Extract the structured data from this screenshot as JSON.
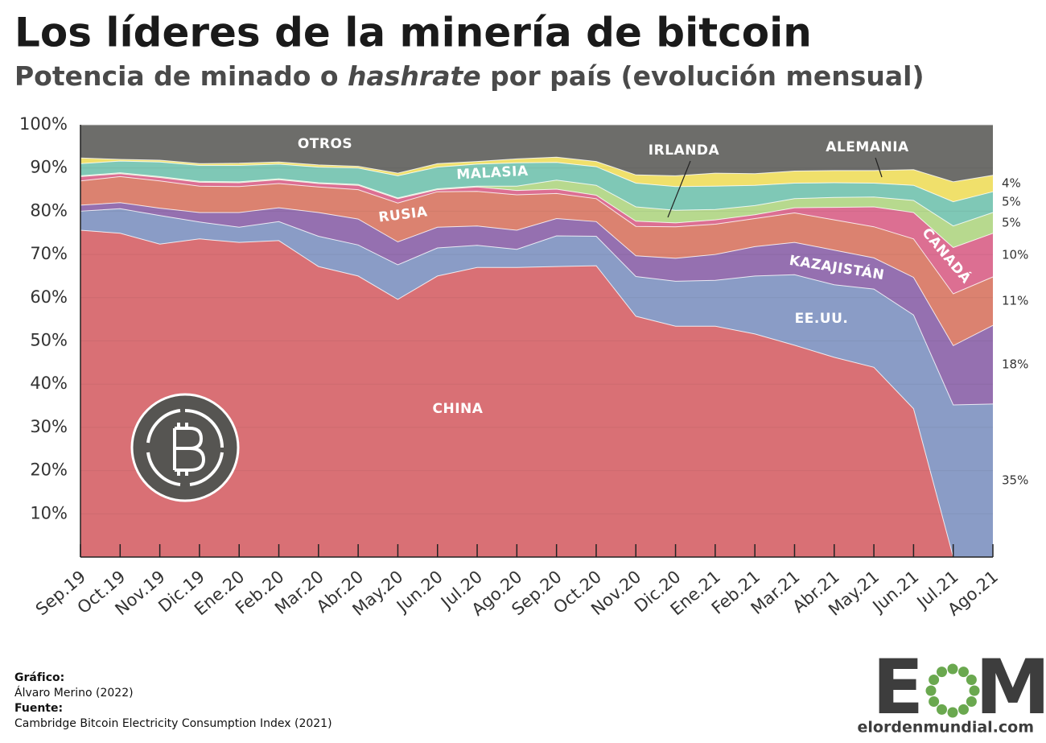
{
  "chart_data": {
    "type": "stacked_area",
    "title": "Los líderes de la minería de bitcoin",
    "subtitle": [
      "Potencia de minado o ",
      "hashrate",
      " por país (evolución mensual)"
    ],
    "categories": [
      "Sep.19",
      "Oct.19",
      "Nov.19",
      "Dic.19",
      "Ene.20",
      "Feb.20",
      "Mar.20",
      "Abr.20",
      "May.20",
      "Jun.20",
      "Jul.20",
      "Ago.20",
      "Sep.20",
      "Oct.20",
      "Nov.20",
      "Dic.20",
      "Ene.21",
      "Feb.21",
      "Mar.21",
      "Abr.21",
      "May.21",
      "Jun.21",
      "Jul.21",
      "Ago.21"
    ],
    "ylim": [
      0,
      100
    ],
    "yticks": [
      {
        "value": 10,
        "label": "10%"
      },
      {
        "value": 20,
        "label": "20%"
      },
      {
        "value": 30,
        "label": "30%"
      },
      {
        "value": 40,
        "label": "40%"
      },
      {
        "value": 50,
        "label": "50%"
      },
      {
        "value": 60,
        "label": "60%"
      },
      {
        "value": 70,
        "label": "70%"
      },
      {
        "value": 80,
        "label": "80%"
      },
      {
        "value": 90,
        "label": "90%"
      },
      {
        "value": 100,
        "label": "100%"
      }
    ],
    "grid": true,
    "series": [
      {
        "name": "CHINA",
        "color": "#d97075",
        "values": [
          75.6,
          74.9,
          72.4,
          73.6,
          72.8,
          73.2,
          67.2,
          65.0,
          59.6,
          65.0,
          67.0,
          67.0,
          67.2,
          67.4,
          55.7,
          53.4,
          53.4,
          51.6,
          49.0,
          46.2,
          43.9,
          34.3,
          0,
          0
        ]
      },
      {
        "name": "EE.UU.",
        "color": "#8a9cc6",
        "values": [
          4.4,
          5.7,
          6.6,
          3.9,
          3.5,
          4.4,
          7.0,
          7.2,
          8.0,
          6.5,
          5.1,
          4.2,
          7.1,
          6.8,
          9.2,
          10.4,
          10.6,
          13.4,
          16.3,
          16.8,
          18.1,
          21.7,
          35.2,
          35.4
        ],
        "end_label": "35%"
      },
      {
        "name": "KAZAJISTÁN",
        "color": "#9570b0",
        "values": [
          1.4,
          1.4,
          1.7,
          2.2,
          3.4,
          3.2,
          5.5,
          6.0,
          5.3,
          4.8,
          4.5,
          4.4,
          4.0,
          3.4,
          4.8,
          5.3,
          6.0,
          6.8,
          7.5,
          8.0,
          7.2,
          8.7,
          13.7,
          18.2
        ],
        "end_label": "18%"
      },
      {
        "name": "RUSIA",
        "color": "#db8270",
        "values": [
          5.6,
          6.0,
          6.3,
          6.1,
          6.0,
          5.6,
          5.9,
          6.8,
          9.0,
          8.2,
          8.0,
          8.2,
          5.8,
          5.3,
          6.8,
          7.3,
          7.0,
          6.5,
          6.8,
          7.0,
          7.2,
          8.9,
          12.0,
          11.2
        ],
        "end_label": "11%"
      },
      {
        "name": "CANADÁ",
        "color": "#dc6f92",
        "values": [
          1.0,
          0.7,
          0.8,
          0.9,
          0.9,
          0.9,
          0.8,
          1.0,
          1.0,
          0.5,
          1.0,
          1.0,
          1.0,
          0.8,
          1.2,
          0.9,
          1.0,
          0.9,
          1.2,
          2.9,
          4.6,
          6.1,
          10.7,
          10.1
        ],
        "end_label": "10%"
      },
      {
        "name": "IRLANDA",
        "color": "#b7d98e",
        "values": [
          0.2,
          0.2,
          0.2,
          0.2,
          0.2,
          0.2,
          0.2,
          0.2,
          0.2,
          0.2,
          0.2,
          1.0,
          2.1,
          2.3,
          3.3,
          2.9,
          2.4,
          2.1,
          2.1,
          2.3,
          2.3,
          2.8,
          5.0,
          4.8
        ],
        "end_label": "5%"
      },
      {
        "name": "MALASIA",
        "color": "#7fc8b6",
        "values": [
          2.8,
          2.7,
          3.4,
          3.7,
          3.8,
          3.4,
          3.6,
          3.8,
          5.1,
          5.0,
          5.1,
          5.4,
          4.1,
          4.3,
          5.5,
          5.5,
          5.4,
          4.7,
          3.6,
          3.4,
          3.2,
          3.5,
          5.6,
          4.8
        ],
        "end_label": "5%"
      },
      {
        "name": "ALEMANIA",
        "color": "#f0e06b",
        "values": [
          1.3,
          0.4,
          0.4,
          0.4,
          0.5,
          0.5,
          0.5,
          0.4,
          0.6,
          0.8,
          0.6,
          0.9,
          1.2,
          1.2,
          1.9,
          2.5,
          3.0,
          2.7,
          2.8,
          2.8,
          2.9,
          3.6,
          4.6,
          3.8
        ],
        "end_label": "4%"
      },
      {
        "name": "OTROS",
        "color": "#6d6d6a",
        "values": [
          7.7,
          8.0,
          8.2,
          9.0,
          8.9,
          8.6,
          9.3,
          9.6,
          11.2,
          9.0,
          8.5,
          7.9,
          7.5,
          8.5,
          11.6,
          11.8,
          11.2,
          11.3,
          10.7,
          10.6,
          10.6,
          10.4,
          13.2,
          11.7
        ]
      }
    ]
  },
  "footer": {
    "credit_title": "Gráfico:",
    "credit": "Álvaro Merino (2022)",
    "source_title": "Fuente:",
    "source": "Cambridge Bitcoin Electricity Consumption Index (2021)"
  },
  "logo": {
    "left": "E",
    "right": "M",
    "site": "elordenmundial.com"
  }
}
